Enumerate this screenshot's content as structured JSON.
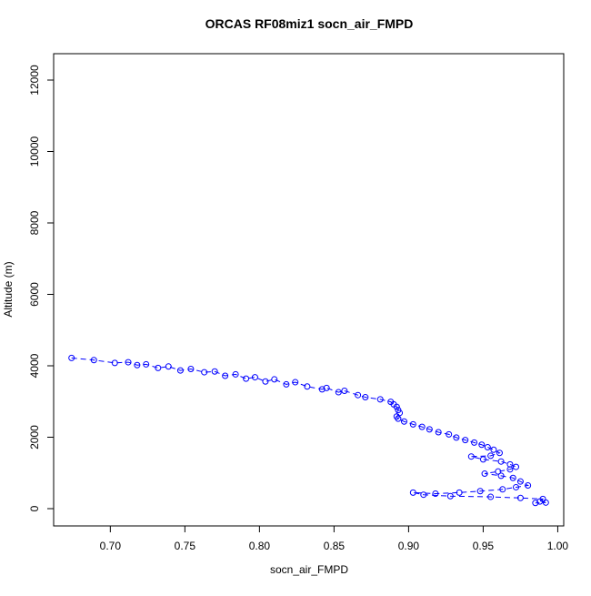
{
  "chart_data": {
    "type": "scatter-line",
    "title": "ORCAS RF08miz1 socn_air_FMPD",
    "x_label": "socn_air_FMPD",
    "y_label": "Altitude (m)",
    "color": "#0000ff",
    "xlim": [
      0.662,
      1.004
    ],
    "ylim": [
      -484,
      12739
    ],
    "xticks": [
      {
        "value": 0.7,
        "label": "0.70"
      },
      0.75,
      {
        "value": 0.8,
        "label": "0.80"
      },
      0.85,
      {
        "value": 0.9,
        "label": "0.90"
      },
      0.95,
      {
        "value": 1.0,
        "label": "1.00"
      }
    ],
    "yticks": [
      0,
      2000,
      4000,
      6000,
      8000,
      10000,
      12000
    ],
    "x": [
      0.674,
      0.689,
      0.703,
      0.712,
      0.718,
      0.724,
      0.732,
      0.739,
      0.747,
      0.754,
      0.763,
      0.77,
      0.777,
      0.784,
      0.791,
      0.797,
      0.804,
      0.81,
      0.818,
      0.824,
      0.832,
      0.842,
      0.845,
      0.853,
      0.857,
      0.866,
      0.871,
      0.881,
      0.888,
      0.89,
      0.892,
      0.893,
      0.894,
      0.892,
      0.893,
      0.897,
      0.903,
      0.909,
      0.914,
      0.92,
      0.927,
      0.932,
      0.938,
      0.944,
      0.949,
      0.953,
      0.957,
      0.961,
      0.955,
      0.942,
      0.95,
      0.962,
      0.968,
      0.972,
      0.968,
      0.96,
      0.951,
      0.962,
      0.97,
      0.975,
      0.98,
      0.972,
      0.963,
      0.948,
      0.934,
      0.918,
      0.903,
      0.91,
      0.928,
      0.955,
      0.975,
      0.99,
      0.988,
      0.992,
      0.985
    ],
    "y": [
      4220,
      4160,
      4080,
      4100,
      4020,
      4040,
      3940,
      3980,
      3870,
      3910,
      3820,
      3840,
      3720,
      3760,
      3640,
      3680,
      3560,
      3620,
      3480,
      3540,
      3420,
      3340,
      3380,
      3260,
      3300,
      3180,
      3120,
      3060,
      2990,
      2920,
      2850,
      2760,
      2680,
      2580,
      2520,
      2440,
      2360,
      2290,
      2220,
      2140,
      2080,
      1990,
      1920,
      1850,
      1790,
      1720,
      1650,
      1560,
      1480,
      1460,
      1380,
      1320,
      1240,
      1170,
      1100,
      1040,
      980,
      920,
      860,
      760,
      650,
      600,
      540,
      490,
      450,
      420,
      450,
      390,
      350,
      330,
      300,
      270,
      200,
      170,
      160
    ]
  }
}
